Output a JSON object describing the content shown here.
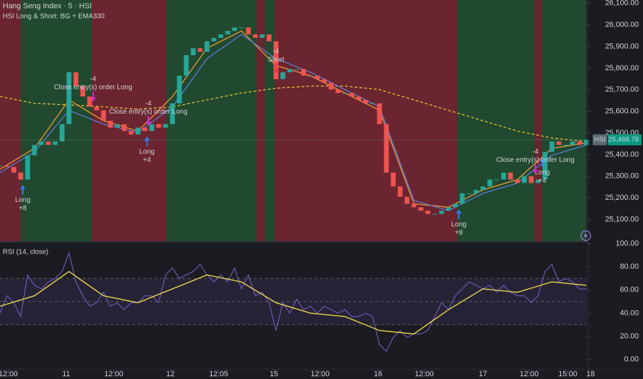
{
  "chart_data": [
    {
      "type": "candles",
      "title": "Hang Seng Index · 5 · HSI",
      "subtitle": "HSI Long & Short: BG + EMA330",
      "symbol": "HSI",
      "last_price": {
        "value": 25468.78,
        "label": "25,468.78"
      },
      "xlim": [
        0,
        170
      ],
      "ylim": [
        25000,
        26115
      ],
      "yticks": [
        {
          "value": 25100,
          "label": "25,100.00"
        },
        {
          "value": 25200,
          "label": "25,200.00"
        },
        {
          "value": 25300,
          "label": "25,300.00"
        },
        {
          "value": 25400,
          "label": "25,400.00"
        },
        {
          "value": 25500,
          "label": "25,500.00"
        },
        {
          "value": 25600,
          "label": "25,600.00"
        },
        {
          "value": 25700,
          "label": "25,700.00"
        },
        {
          "value": 25800,
          "label": "25,800.00"
        },
        {
          "value": 25900,
          "label": "25,900.00"
        },
        {
          "value": 26000,
          "label": "26,000.00"
        },
        {
          "value": 26100,
          "label": "26,100.00"
        }
      ],
      "xticks": [
        {
          "value": 2.4,
          "label": "12:00"
        },
        {
          "value": 19.2,
          "label": "11"
        },
        {
          "value": 33,
          "label": "12:00"
        },
        {
          "value": 49.4,
          "label": "12"
        },
        {
          "value": 63.4,
          "label": "12:05"
        },
        {
          "value": 79.4,
          "label": "15"
        },
        {
          "value": 92.8,
          "label": "12:00"
        },
        {
          "value": 109.6,
          "label": "16"
        },
        {
          "value": 123,
          "label": "12:00"
        },
        {
          "value": 140,
          "label": "17"
        },
        {
          "value": 153.4,
          "label": "12:00"
        },
        {
          "value": 164.6,
          "label": "15:00"
        },
        {
          "value": 171.2,
          "label": "18"
        }
      ],
      "regions": [
        {
          "x": [
            0,
            6
          ],
          "color": "#6b2530"
        },
        {
          "x": [
            6,
            26.6
          ],
          "color": "#21492f"
        },
        {
          "x": [
            26.6,
            48.2
          ],
          "color": "#6b2530"
        },
        {
          "x": [
            48.2,
            74.4
          ],
          "color": "#21492f"
        },
        {
          "x": [
            74.4,
            76.8
          ],
          "color": "#6b2530"
        },
        {
          "x": [
            76.8,
            79.6
          ],
          "color": "#21492f"
        },
        {
          "x": [
            79.6,
            132.6
          ],
          "color": "#6b2530"
        },
        {
          "x": [
            132.6,
            155
          ],
          "color": "#21492f"
        },
        {
          "x": [
            155,
            157
          ],
          "color": "#6b2530"
        },
        {
          "x": [
            157,
            170
          ],
          "color": "#21492f"
        }
      ],
      "x": [
        0,
        2,
        4,
        6,
        8,
        10,
        12,
        14,
        16,
        18,
        20,
        22,
        24,
        26,
        28,
        30,
        32,
        34,
        36,
        38,
        40,
        42,
        44,
        46,
        48,
        50,
        52,
        54,
        56,
        58,
        60,
        62,
        64,
        66,
        68,
        70,
        72,
        74,
        76,
        78,
        80,
        82,
        84,
        86,
        88,
        90,
        92,
        94,
        96,
        98,
        100,
        102,
        104,
        106,
        108,
        110,
        112,
        114,
        116,
        118,
        120,
        122,
        124,
        126,
        128,
        130,
        132,
        134,
        136,
        138,
        140,
        142,
        144,
        146,
        148,
        150,
        152,
        154,
        156,
        158,
        160,
        162,
        164,
        166,
        168,
        170
      ],
      "series": [
        {
          "up_color": "#26a69a",
          "down_color": "#ef5350",
          "values": [
            25349,
            25343,
            25317,
            25285,
            25397,
            25445,
            25461,
            25445,
            25461,
            25541,
            25781,
            25717,
            25669,
            25621,
            25605,
            25557,
            25525,
            25541,
            25509,
            25493,
            25525,
            25509,
            25541,
            25525,
            25541,
            25637,
            25765,
            25860,
            25892,
            25876,
            25924,
            25940,
            25956,
            25972,
            25988,
            25988,
            25956,
            25940,
            25956,
            25924,
            25749,
            25781,
            25796,
            25796,
            25765,
            25765,
            25749,
            25733,
            25701,
            25685,
            25685,
            25669,
            25653,
            25637,
            25637,
            25541,
            25317,
            25253,
            25205,
            25173,
            25157,
            25141,
            25126,
            25126,
            25141,
            25157,
            25173,
            25221,
            25221,
            25237,
            25253,
            25285,
            25285,
            25317,
            25285,
            25269,
            25301,
            25269,
            25285,
            25413,
            25461,
            25445,
            25445,
            25461,
            25445,
            25469
          ]
        }
      ],
      "overlays": [
        {
          "color": "#e8c53a",
          "dashed": true,
          "x": [
            0,
            10,
            20,
            30,
            40,
            50,
            60,
            70,
            80,
            90,
            100,
            110,
            120,
            130,
            140,
            150,
            160,
            170
          ],
          "values": [
            25669,
            25637,
            25630,
            25621,
            25611,
            25621,
            25653,
            25685,
            25707,
            25717,
            25717,
            25701,
            25653,
            25605,
            25557,
            25509,
            25477,
            25461
          ]
        },
        {
          "color": "#f29d38",
          "dashed": false,
          "x": [
            0,
            10,
            20,
            30,
            40,
            50,
            60,
            70,
            80,
            90,
            100,
            110,
            120,
            130,
            140,
            150,
            160,
            170
          ],
          "values": [
            25333,
            25429,
            25653,
            25557,
            25509,
            25669,
            25892,
            25972,
            25812,
            25765,
            25685,
            25605,
            25173,
            25157,
            25237,
            25285,
            25429,
            25455
          ]
        },
        {
          "color": "#5b7fe0",
          "dashed": false,
          "x": [
            0,
            10,
            20,
            30,
            40,
            50,
            60,
            70,
            80,
            90,
            100,
            110,
            120,
            130,
            140,
            150,
            160,
            170
          ],
          "values": [
            25317,
            25413,
            25605,
            25541,
            25503,
            25621,
            25844,
            25956,
            25844,
            25781,
            25701,
            25621,
            25189,
            25141,
            25221,
            25269,
            25397,
            25445
          ]
        }
      ],
      "orders_below": [
        {
          "x": 6.6,
          "label": "Long",
          "qty": "+8"
        },
        {
          "x": 42.6,
          "label": "Long",
          "qty": "+4"
        },
        {
          "x": 133,
          "label": "Long",
          "qty": "+8"
        },
        {
          "x": 157.2,
          "label": "Long",
          "qty": "+4"
        }
      ],
      "orders_above": [
        {
          "x": 27,
          "qty": "-4",
          "label": "Close entry(s) order Long"
        },
        {
          "x": 43,
          "qty": "-4",
          "label": "Close entry(s) order Long"
        },
        {
          "x": 80,
          "qty": "-4",
          "label": "Short"
        },
        {
          "x": 155.2,
          "qty": "-4",
          "label": "Close entry(s) order Long"
        }
      ]
    },
    {
      "type": "rsi",
      "title": "RSI (14, close)",
      "xlim": [
        0,
        170
      ],
      "ylim": [
        -8,
        101
      ],
      "yticks": [
        {
          "value": 0,
          "label": "0.00"
        },
        {
          "value": 20,
          "label": "20.00"
        },
        {
          "value": 40,
          "label": "40.00"
        },
        {
          "value": 60,
          "label": "60.00"
        },
        {
          "value": 80,
          "label": "80.00"
        },
        {
          "value": 100,
          "label": "100.00"
        }
      ],
      "levels": [
        70,
        50,
        30
      ],
      "band_color": "#7e57c2",
      "series": [
        {
          "color": "#7e63d6",
          "x": [
            0,
            2,
            4,
            6,
            8,
            10,
            12,
            14,
            16,
            18,
            20,
            22,
            24,
            26,
            28,
            30,
            32,
            34,
            36,
            38,
            40,
            42,
            44,
            46,
            48,
            50,
            52,
            54,
            56,
            58,
            60,
            62,
            64,
            66,
            68,
            70,
            72,
            74,
            76,
            78,
            80,
            82,
            84,
            86,
            88,
            90,
            92,
            94,
            96,
            98,
            100,
            102,
            104,
            106,
            108,
            110,
            112,
            114,
            116,
            118,
            120,
            122,
            124,
            126,
            128,
            130,
            132,
            134,
            136,
            138,
            140,
            142,
            144,
            146,
            148,
            150,
            152,
            154,
            156,
            158,
            160,
            162,
            164,
            166,
            168,
            170
          ],
          "values": [
            40,
            55,
            49,
            37,
            73,
            64,
            61,
            67,
            70,
            76,
            92,
            67,
            55,
            46,
            49,
            58,
            46,
            49,
            43,
            49,
            49,
            55,
            55,
            49,
            73,
            79,
            70,
            73,
            76,
            82,
            73,
            67,
            73,
            67,
            79,
            61,
            73,
            55,
            58,
            49,
            25,
            49,
            40,
            52,
            43,
            46,
            40,
            46,
            43,
            40,
            43,
            37,
            37,
            40,
            37,
            13,
            7,
            19,
            25,
            19,
            22,
            22,
            25,
            37,
            49,
            43,
            55,
            61,
            67,
            64,
            61,
            64,
            58,
            64,
            58,
            55,
            55,
            49,
            55,
            76,
            82,
            67,
            70,
            67,
            61,
            61
          ]
        },
        {
          "color": "#f0d84a",
          "x": [
            0,
            10,
            20,
            30,
            40,
            50,
            60,
            70,
            80,
            90,
            100,
            110,
            120,
            130,
            140,
            150,
            160,
            170
          ],
          "values": [
            46,
            55,
            76,
            55,
            49,
            61,
            73,
            67,
            49,
            40,
            37,
            25,
            22,
            43,
            61,
            58,
            67,
            64
          ]
        }
      ]
    }
  ]
}
